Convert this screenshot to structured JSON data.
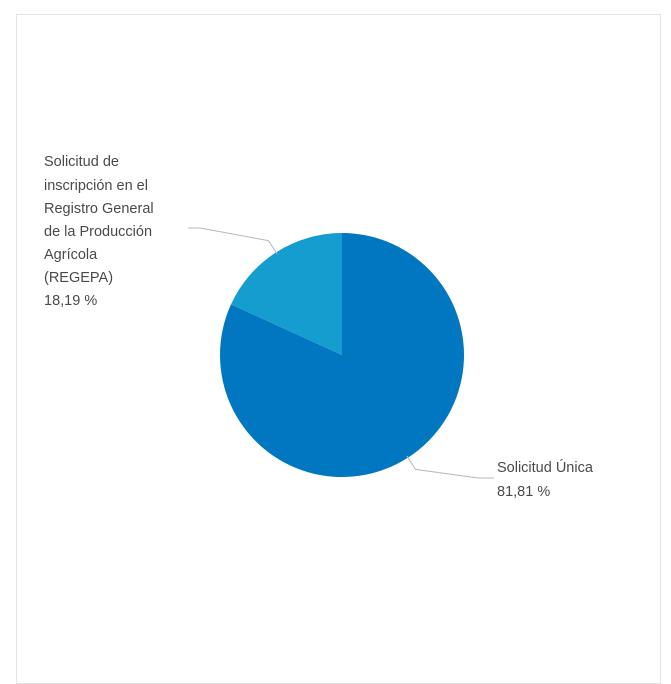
{
  "chart_data": {
    "type": "pie",
    "title": "",
    "start_angle_deg": 0,
    "direction": "clockwise",
    "slices": [
      {
        "label_lines": [
          "Solicitud Única"
        ],
        "value_text": "81,81 %",
        "value": 81.81,
        "color": "#0077c0"
      },
      {
        "label_lines": [
          "Solicitud de",
          "inscripción en el",
          "Registro General",
          "de la Producción",
          "Agrícola",
          "(REGEPA)"
        ],
        "value_text": "18,19 %",
        "value": 18.19,
        "color": "#169dd0"
      }
    ],
    "leader_color": "#b8b8b8"
  }
}
